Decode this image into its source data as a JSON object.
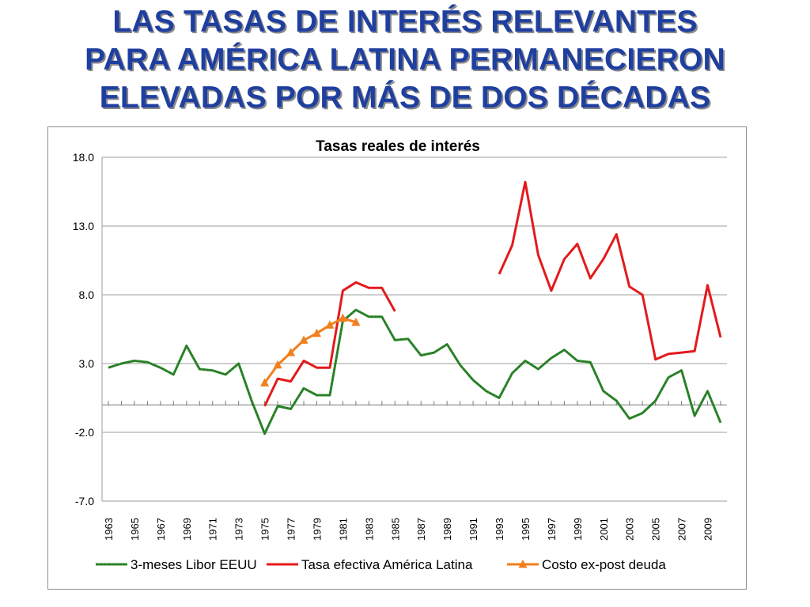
{
  "slide": {
    "title_lines": [
      "LAS TASAS DE INTERÉS RELEVANTES",
      "PARA AMÉRICA LATINA PERMANECIERON",
      "ELEVADAS POR MÁS DE DOS DÉCADAS"
    ]
  },
  "colors": {
    "title": "#1f3fa0",
    "libor": "#2e8b2e",
    "libor_dash": "#2a6e22",
    "tasa": "#e31a1c",
    "costo": "#f07f1e",
    "grid": "#9e9e9e"
  },
  "chart_data": {
    "type": "line",
    "title": "Tasas reales de interés",
    "ylim": [
      -7,
      18
    ],
    "yticks": [
      18.0,
      13.0,
      8.0,
      3.0,
      -2.0,
      -7.0
    ],
    "ytick_labels": [
      "18.0",
      "13.0",
      "8.0",
      "3.0",
      "-2.0",
      "-7.0"
    ],
    "x_start": 1963,
    "x_end": 2010,
    "xtick_labels": [
      "1963",
      "1965",
      "1967",
      "1969",
      "1971",
      "1973",
      "1975",
      "1977",
      "1979",
      "1981",
      "1983",
      "1985",
      "1987",
      "1989",
      "1991",
      "1993",
      "1995",
      "1997",
      "1999",
      "2001",
      "2003",
      "2005",
      "2007",
      "2009"
    ],
    "legend_position": "bottom",
    "series": [
      {
        "name": "3-meses Libor EEUU",
        "key": "libor",
        "x": [
          1963,
          1964,
          1965,
          1966,
          1967,
          1968,
          1969,
          1970,
          1971,
          1972,
          1973,
          1974,
          1975,
          1976,
          1977,
          1978,
          1979,
          1980,
          1981,
          1982,
          1983,
          1984,
          1985,
          1986,
          1987,
          1988,
          1989,
          1990,
          1991,
          1992,
          1993,
          1994,
          1995,
          1996,
          1997,
          1998,
          1999,
          2000,
          2001,
          2002,
          2003,
          2004,
          2005,
          2006,
          2007,
          2008,
          2009,
          2010
        ],
        "values": [
          2.7,
          3.0,
          3.2,
          3.1,
          2.7,
          2.2,
          4.3,
          2.6,
          2.5,
          2.2,
          3.0,
          0.3,
          -2.1,
          -0.1,
          -0.3,
          1.2,
          0.7,
          0.7,
          6.1,
          6.9,
          6.4,
          6.4,
          4.7,
          4.8,
          3.6,
          3.8,
          4.4,
          2.9,
          1.8,
          1.0,
          0.5,
          2.3,
          3.2,
          2.6,
          3.4,
          4.0,
          3.2,
          3.1,
          1.0,
          0.3,
          -1.0,
          -0.6,
          0.3,
          2.0,
          2.5,
          -0.8,
          1.0,
          -1.3
        ]
      },
      {
        "name": "Tasa efectiva América Latina",
        "key": "tasa",
        "segments": [
          {
            "x": [
              1975,
              1976,
              1977,
              1978,
              1979,
              1980,
              1981,
              1982,
              1983,
              1984,
              1985
            ],
            "values": [
              -0.1,
              1.9,
              1.7,
              3.2,
              2.7,
              2.7,
              8.3,
              8.9,
              8.5,
              8.5,
              6.8
            ]
          },
          {
            "x": [
              1993,
              1994,
              1995,
              1996,
              1997,
              1998,
              1999,
              2000,
              2001,
              2002,
              2003,
              2004,
              2005,
              2006,
              2007,
              2008,
              2009,
              2010
            ],
            "values": [
              9.5,
              11.6,
              16.2,
              10.9,
              8.3,
              10.6,
              11.7,
              9.2,
              10.6,
              12.4,
              8.6,
              8.0,
              3.3,
              3.7,
              3.8,
              3.9,
              8.7,
              4.9
            ]
          }
        ]
      },
      {
        "name": "Costo ex-post deuda",
        "key": "costo",
        "x": [
          1975,
          1976,
          1977,
          1978,
          1979,
          1980,
          1981,
          1982
        ],
        "values": [
          1.6,
          2.9,
          3.8,
          4.7,
          5.2,
          5.8,
          6.3,
          6.0
        ]
      }
    ]
  }
}
